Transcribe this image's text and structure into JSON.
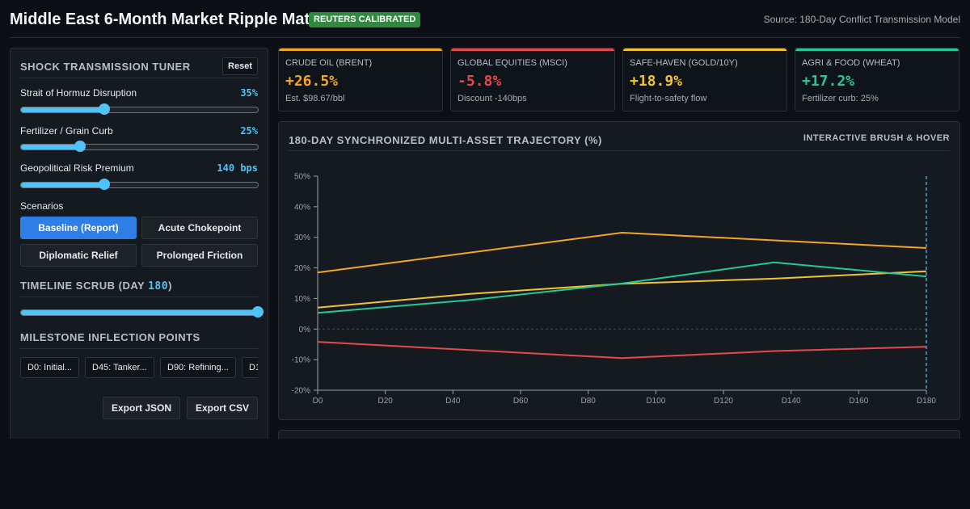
{
  "header": {
    "title": "Middle East 6-Month Market Ripple Matrix",
    "badge": "REUTERS CALIBRATED",
    "source": "Source: 180-Day Conflict Transmission Model"
  },
  "tuner": {
    "title": "SHOCK TRANSMISSION TUNER",
    "reset_label": "Reset",
    "controls": [
      {
        "label": "Strait of Hormuz Disruption",
        "value_text": "35%",
        "level": 0.35
      },
      {
        "label": "Fertilizer / Grain Curb",
        "value_text": "25%",
        "level": 0.25
      },
      {
        "label": "Geopolitical Risk Premium",
        "value_text": "140 bps",
        "level": 0.35
      }
    ],
    "scenarios_label": "Scenarios",
    "scenarios": [
      {
        "label": "Baseline (Report)",
        "active": true
      },
      {
        "label": "Acute Chokepoint",
        "active": false
      },
      {
        "label": "Diplomatic Relief",
        "active": false
      },
      {
        "label": "Prolonged Friction",
        "active": false
      }
    ]
  },
  "timeline": {
    "title_prefix": "TIMELINE SCRUB (DAY ",
    "day": "180",
    "title_suffix": ")",
    "level": 1.0
  },
  "milestones": {
    "title": "MILESTONE INFLECTION POINTS",
    "items": [
      "D0: Initial...",
      "D45: Tanker...",
      "D90: Refining...",
      "D1"
    ]
  },
  "export": {
    "json_label": "Export JSON",
    "csv_label": "Export CSV"
  },
  "cards": [
    {
      "label": "CRUDE OIL (BRENT)",
      "value": "+26.5%",
      "sub": "Est. $98.67/bbl",
      "color": "#f5a524"
    },
    {
      "label": "GLOBAL EQUITIES (MSCI)",
      "value": "-5.8%",
      "sub": "Discount -140bps",
      "color": "#e5484d"
    },
    {
      "label": "SAFE-HAVEN (GOLD/10Y)",
      "value": "+18.9%",
      "sub": "Flight-to-safety flow",
      "color": "#f2c230"
    },
    {
      "label": "AGRI & FOOD (WHEAT)",
      "value": "+17.2%",
      "sub": "Fertilizer curb: 25%",
      "color": "#20c997"
    }
  ],
  "chart": {
    "title": "180-DAY SYNCHRONIZED MULTI-ASSET TRAJECTORY (%)",
    "tag": "INTERACTIVE BRUSH & HOVER"
  },
  "chart_data": {
    "type": "line",
    "title": "180-DAY SYNCHRONIZED MULTI-ASSET TRAJECTORY (%)",
    "xlabel": "",
    "ylabel": "",
    "x_ticks": [
      "D0",
      "D20",
      "D40",
      "D60",
      "D80",
      "D100",
      "D120",
      "D140",
      "D160",
      "D180"
    ],
    "xlim": [
      0,
      180
    ],
    "ylim": [
      -20,
      50
    ],
    "y_ticks": [
      -20,
      -10,
      0,
      10,
      20,
      30,
      40,
      50
    ],
    "y_tick_labels": [
      "-20%",
      "-10%",
      "0%",
      "10%",
      "20%",
      "30%",
      "40%",
      "50%"
    ],
    "marker_day": 180,
    "series": [
      {
        "color": "#f5a524",
        "points": [
          [
            0,
            18.5
          ],
          [
            90,
            31.5
          ],
          [
            180,
            26.5
          ]
        ]
      },
      {
        "color": "#e5484d",
        "points": [
          [
            0,
            -4.2
          ],
          [
            90,
            -9.5
          ],
          [
            135,
            -7.2
          ],
          [
            180,
            -5.8
          ]
        ]
      },
      {
        "color": "#f2c230",
        "points": [
          [
            0,
            7.0
          ],
          [
            45,
            11.5
          ],
          [
            90,
            14.8
          ],
          [
            135,
            16.5
          ],
          [
            180,
            18.9
          ]
        ]
      },
      {
        "color": "#20c997",
        "points": [
          [
            0,
            5.3
          ],
          [
            45,
            9.5
          ],
          [
            90,
            14.9
          ],
          [
            135,
            21.8
          ],
          [
            180,
            17.2
          ]
        ]
      }
    ]
  }
}
